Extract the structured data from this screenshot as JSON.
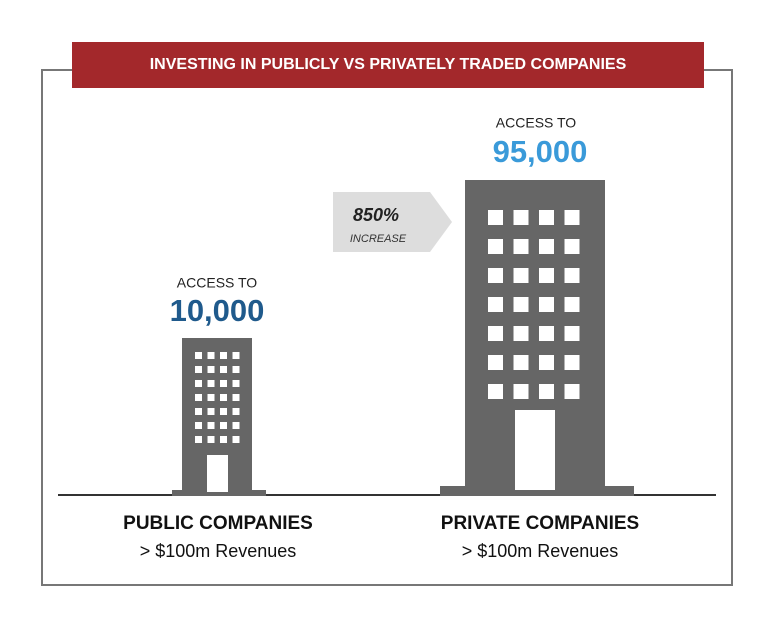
{
  "header": {
    "title": "INVESTING IN PUBLICLY  VS  PRIVATELY TRADED COMPANIES"
  },
  "public": {
    "access_label": "ACCESS TO",
    "count": "10,000",
    "name": "PUBLIC COMPANIES",
    "criteria": "> $100m Revenues"
  },
  "private": {
    "access_label": "ACCESS TO",
    "count": "95,000",
    "name": "PRIVATE COMPANIES",
    "criteria": "> $100m Revenues"
  },
  "callout": {
    "percent": "850%",
    "label": "INCREASE"
  }
}
